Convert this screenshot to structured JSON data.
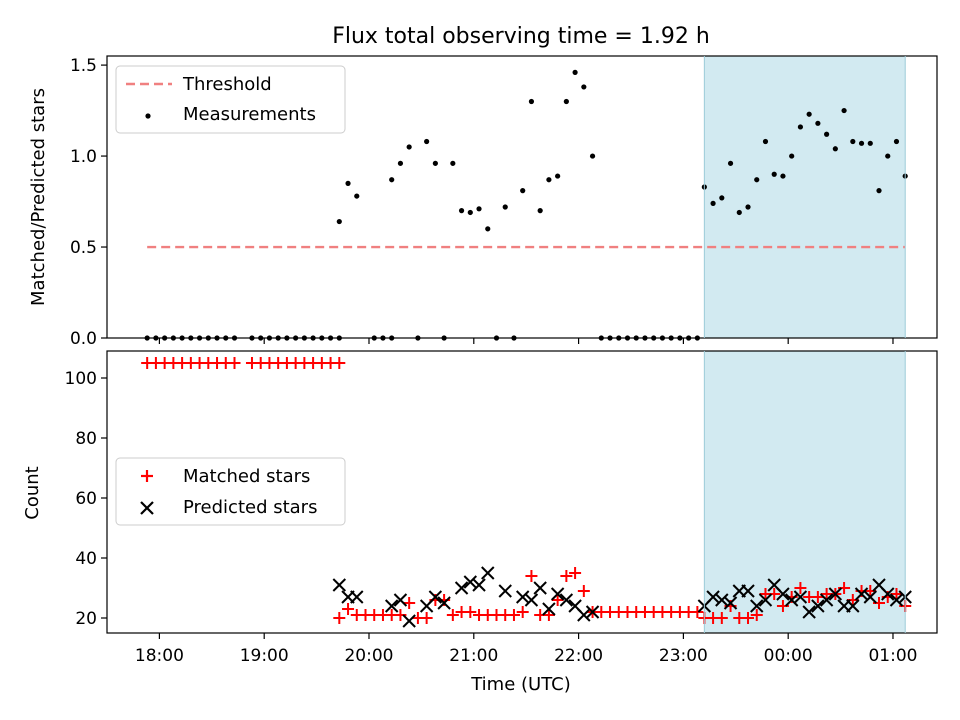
{
  "chart_data": {
    "type": "scatter",
    "title": "Flux total observing time = 1.92 h",
    "xlabel": "Time (UTC)",
    "x_unit": "hours since 00:00 of observing night (values past 24 denote next day)",
    "x_ticks": [
      {
        "label": "18:00"
      },
      {
        "label": "19:00"
      },
      {
        "label": "20:00"
      },
      {
        "label": "21:00"
      },
      {
        "label": "22:00"
      },
      {
        "label": "23:00"
      },
      {
        "label": "00:00"
      },
      {
        "label": "01:00"
      }
    ],
    "highlight_span": {
      "start": "23:12",
      "end": "01:07",
      "color": "#add8e6"
    },
    "grid": false,
    "panels": [
      {
        "name": "ratio",
        "ylabel": "Matched/Predicted stars",
        "ylim": [
          0,
          1.55
        ],
        "y_ticks": [
          "0.0",
          "0.5",
          "1.0",
          "1.5"
        ],
        "legend": {
          "position": "top-left",
          "entries": [
            "Threshold",
            "Measurements"
          ]
        },
        "threshold": {
          "name": "Threshold",
          "value": 0.5,
          "x_start": "17:53",
          "x_end": "01:07",
          "color": "#f08080"
        },
        "series": [
          {
            "name": "Measurements",
            "marker": "dot",
            "color": "#000000",
            "points": [
              [
                "17:53",
                0
              ],
              [
                "17:58",
                0
              ],
              [
                "18:03",
                0
              ],
              [
                "18:08",
                0
              ],
              [
                "18:13",
                0
              ],
              [
                "18:18",
                0
              ],
              [
                "18:23",
                0
              ],
              [
                "18:28",
                0
              ],
              [
                "18:33",
                0
              ],
              [
                "18:38",
                0
              ],
              [
                "18:43",
                0
              ],
              [
                "18:53",
                0
              ],
              [
                "18:58",
                0
              ],
              [
                "19:03",
                0
              ],
              [
                "19:08",
                0
              ],
              [
                "19:13",
                0
              ],
              [
                "19:18",
                0
              ],
              [
                "19:23",
                0
              ],
              [
                "19:28",
                0
              ],
              [
                "19:33",
                0
              ],
              [
                "19:38",
                0
              ],
              [
                "19:43",
                0
              ],
              [
                "19:43",
                0.64
              ],
              [
                "19:48",
                0.85
              ],
              [
                "19:53",
                0.78
              ],
              [
                "20:03",
                0
              ],
              [
                "20:08",
                0
              ],
              [
                "20:13",
                0
              ],
              [
                "20:13",
                0.87
              ],
              [
                "20:18",
                0.96
              ],
              [
                "20:23",
                1.05
              ],
              [
                "20:28",
                0
              ],
              [
                "20:33",
                1.08
              ],
              [
                "20:38",
                0.96
              ],
              [
                "20:43",
                0
              ],
              [
                "20:48",
                0.96
              ],
              [
                "20:53",
                0.7
              ],
              [
                "20:58",
                0.69
              ],
              [
                "21:03",
                0.71
              ],
              [
                "21:08",
                0.6
              ],
              [
                "21:13",
                0
              ],
              [
                "21:18",
                0.72
              ],
              [
                "21:23",
                0
              ],
              [
                "21:28",
                0.81
              ],
              [
                "21:33",
                1.3
              ],
              [
                "21:38",
                0.7
              ],
              [
                "21:43",
                0.87
              ],
              [
                "21:48",
                0.89
              ],
              [
                "21:53",
                1.3
              ],
              [
                "21:58",
                1.46
              ],
              [
                "22:03",
                1.38
              ],
              [
                "22:08",
                1.0
              ],
              [
                "22:13",
                0
              ],
              [
                "22:18",
                0
              ],
              [
                "22:23",
                0
              ],
              [
                "22:28",
                0
              ],
              [
                "22:33",
                0
              ],
              [
                "22:38",
                0
              ],
              [
                "22:43",
                0
              ],
              [
                "22:48",
                0
              ],
              [
                "22:53",
                0
              ],
              [
                "22:58",
                0
              ],
              [
                "23:03",
                0
              ],
              [
                "23:08",
                0
              ],
              [
                "23:12",
                0.83
              ],
              [
                "23:17",
                0.74
              ],
              [
                "23:22",
                0.77
              ],
              [
                "23:27",
                0.96
              ],
              [
                "23:32",
                0.69
              ],
              [
                "23:37",
                0.72
              ],
              [
                "23:42",
                0.87
              ],
              [
                "23:47",
                1.08
              ],
              [
                "23:52",
                0.9
              ],
              [
                "23:57",
                0.89
              ],
              [
                "00:02",
                1.0
              ],
              [
                "00:07",
                1.16
              ],
              [
                "00:12",
                1.23
              ],
              [
                "00:17",
                1.18
              ],
              [
                "00:22",
                1.12
              ],
              [
                "00:27",
                1.04
              ],
              [
                "00:32",
                1.25
              ],
              [
                "00:37",
                1.08
              ],
              [
                "00:42",
                1.07
              ],
              [
                "00:47",
                1.07
              ],
              [
                "00:52",
                0.81
              ],
              [
                "00:57",
                1.0
              ],
              [
                "01:02",
                1.08
              ],
              [
                "01:07",
                0.89
              ]
            ]
          }
        ]
      },
      {
        "name": "counts",
        "ylabel": "Count",
        "ylim": [
          15,
          109
        ],
        "y_ticks": [
          "20",
          "40",
          "60",
          "80",
          "100"
        ],
        "legend": {
          "position": "center-left",
          "entries": [
            "Matched stars",
            "Predicted stars"
          ]
        },
        "series": [
          {
            "name": "Matched stars",
            "marker": "plus",
            "color": "#ff0000",
            "points": [
              [
                "17:53",
                105
              ],
              [
                "17:58",
                105
              ],
              [
                "18:03",
                105
              ],
              [
                "18:08",
                105
              ],
              [
                "18:13",
                105
              ],
              [
                "18:18",
                105
              ],
              [
                "18:23",
                105
              ],
              [
                "18:28",
                105
              ],
              [
                "18:33",
                105
              ],
              [
                "18:38",
                105
              ],
              [
                "18:43",
                105
              ],
              [
                "18:53",
                105
              ],
              [
                "18:58",
                105
              ],
              [
                "19:03",
                105
              ],
              [
                "19:08",
                105
              ],
              [
                "19:13",
                105
              ],
              [
                "19:18",
                105
              ],
              [
                "19:23",
                105
              ],
              [
                "19:28",
                105
              ],
              [
                "19:33",
                105
              ],
              [
                "19:38",
                105
              ],
              [
                "19:43",
                105
              ],
              [
                "19:43",
                20
              ],
              [
                "19:48",
                23
              ],
              [
                "19:53",
                21
              ],
              [
                "19:58",
                21
              ],
              [
                "20:03",
                21
              ],
              [
                "20:08",
                21
              ],
              [
                "20:13",
                21
              ],
              [
                "20:18",
                21
              ],
              [
                "20:23",
                25
              ],
              [
                "20:28",
                20
              ],
              [
                "20:33",
                20
              ],
              [
                "20:38",
                26
              ],
              [
                "20:43",
                26
              ],
              [
                "20:48",
                21
              ],
              [
                "20:53",
                22
              ],
              [
                "20:58",
                22
              ],
              [
                "21:03",
                21
              ],
              [
                "21:08",
                21
              ],
              [
                "21:13",
                21
              ],
              [
                "21:18",
                21
              ],
              [
                "21:23",
                21
              ],
              [
                "21:28",
                22
              ],
              [
                "21:33",
                34
              ],
              [
                "21:38",
                21
              ],
              [
                "21:43",
                21
              ],
              [
                "21:48",
                26
              ],
              [
                "21:53",
                34
              ],
              [
                "21:58",
                35
              ],
              [
                "22:03",
                29
              ],
              [
                "22:08",
                22
              ],
              [
                "22:13",
                22
              ],
              [
                "22:18",
                22
              ],
              [
                "22:23",
                22
              ],
              [
                "22:28",
                22
              ],
              [
                "22:33",
                22
              ],
              [
                "22:38",
                22
              ],
              [
                "22:43",
                22
              ],
              [
                "22:48",
                22
              ],
              [
                "22:53",
                22
              ],
              [
                "22:58",
                22
              ],
              [
                "23:03",
                22
              ],
              [
                "23:08",
                22
              ],
              [
                "23:12",
                20
              ],
              [
                "23:17",
                20
              ],
              [
                "23:22",
                20
              ],
              [
                "23:27",
                24
              ],
              [
                "23:32",
                20
              ],
              [
                "23:37",
                20
              ],
              [
                "23:42",
                21
              ],
              [
                "23:47",
                28
              ],
              [
                "23:52",
                28
              ],
              [
                "23:57",
                24
              ],
              [
                "00:02",
                27
              ],
              [
                "00:07",
                30
              ],
              [
                "00:12",
                27
              ],
              [
                "00:17",
                27
              ],
              [
                "00:22",
                28
              ],
              [
                "00:27",
                28
              ],
              [
                "00:32",
                30
              ],
              [
                "00:37",
                26
              ],
              [
                "00:42",
                29
              ],
              [
                "00:47",
                29
              ],
              [
                "00:52",
                25
              ],
              [
                "00:57",
                27
              ],
              [
                "01:02",
                28
              ],
              [
                "01:07",
                24
              ]
            ]
          },
          {
            "name": "Predicted stars",
            "marker": "x",
            "color": "#000000",
            "points": [
              [
                "19:43",
                31
              ],
              [
                "19:48",
                27
              ],
              [
                "19:53",
                27
              ],
              [
                "20:13",
                24
              ],
              [
                "20:18",
                26
              ],
              [
                "20:23",
                19
              ],
              [
                "20:33",
                24
              ],
              [
                "20:38",
                27
              ],
              [
                "20:43",
                25
              ],
              [
                "20:53",
                30
              ],
              [
                "20:58",
                32
              ],
              [
                "21:03",
                31
              ],
              [
                "21:08",
                35
              ],
              [
                "21:18",
                29
              ],
              [
                "21:28",
                27
              ],
              [
                "21:33",
                26
              ],
              [
                "21:38",
                30
              ],
              [
                "21:43",
                23
              ],
              [
                "21:48",
                28
              ],
              [
                "21:53",
                26
              ],
              [
                "21:58",
                24
              ],
              [
                "22:03",
                21
              ],
              [
                "22:08",
                22
              ],
              [
                "23:12",
                24
              ],
              [
                "23:17",
                27
              ],
              [
                "23:22",
                26
              ],
              [
                "23:27",
                25
              ],
              [
                "23:32",
                29
              ],
              [
                "23:37",
                29
              ],
              [
                "23:42",
                24
              ],
              [
                "23:47",
                26
              ],
              [
                "23:52",
                31
              ],
              [
                "23:57",
                28
              ],
              [
                "00:02",
                26
              ],
              [
                "00:07",
                27
              ],
              [
                "00:12",
                22
              ],
              [
                "00:17",
                24
              ],
              [
                "00:22",
                26
              ],
              [
                "00:27",
                28
              ],
              [
                "00:32",
                24
              ],
              [
                "00:37",
                24
              ],
              [
                "00:42",
                28
              ],
              [
                "00:47",
                27
              ],
              [
                "00:52",
                31
              ],
              [
                "00:57",
                28
              ],
              [
                "01:02",
                26
              ],
              [
                "01:07",
                27
              ]
            ]
          }
        ]
      }
    ]
  }
}
